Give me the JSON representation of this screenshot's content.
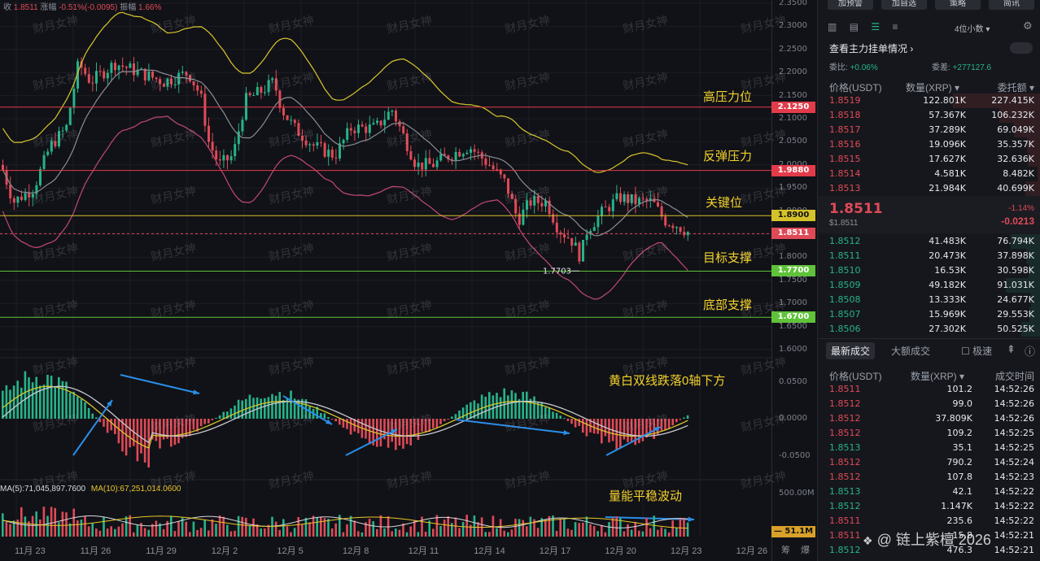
{
  "top_info": {
    "close_label": "收",
    "close_val": "1.8511",
    "chg_label": "涨幅",
    "chg_val": "-0.51%(-0.0095)",
    "amp_label": "振幅",
    "amp_val": "1.66%"
  },
  "price_ticks": [
    "2.3500",
    "2.3000",
    "2.2500",
    "2.2000",
    "2.1500",
    "2.1000",
    "2.0500",
    "2.0000",
    "1.9500",
    "1.9000",
    "1.8500",
    "1.8000",
    "1.7500",
    "1.7000",
    "1.6500",
    "1.6000"
  ],
  "macd_ticks": [
    "0.0500",
    "0.0000",
    "-0.0500"
  ],
  "vol_ticks": [
    "500.00M"
  ],
  "levels": [
    {
      "label": "高压力位",
      "price": "2.1250",
      "color": "#e33b4a"
    },
    {
      "label": "反弹压力",
      "price": "1.9880",
      "color": "#e33b4a"
    },
    {
      "label": "关键位",
      "price": "1.8900",
      "color": "#d4c22a"
    },
    {
      "label": "目标支撑",
      "price": "1.7700",
      "color": "#5fc23a"
    },
    {
      "label": "底部支撑",
      "price": "1.6700",
      "color": "#5fc23a"
    }
  ],
  "current_price": "1.8511",
  "low_marker": "1.7703",
  "annotations": {
    "macd": "黄白双线跌落0轴下方",
    "volume": "量能平稳波动"
  },
  "volume_info": {
    "ma5": "MA(5):71,045,897.7600",
    "ma10": "MA(10):67,251,014.0600",
    "current": "51.1M"
  },
  "x_ticks": [
    "11月 23",
    "11月 26",
    "11月 29",
    "12月 2",
    "12月 5",
    "12月 8",
    "12月 11",
    "12月 14",
    "12月 17",
    "12月 20",
    "12月 23",
    "12月 26"
  ],
  "axis_icons": {
    "a": "筹",
    "b": "爆"
  },
  "watermark": "财月女神",
  "source_watermark": "链上紫檀 2026",
  "right_panel": {
    "top_buttons": [
      "加预警",
      "加自选",
      "策略",
      "简讯"
    ],
    "depth_selector": "4位小数",
    "view_main": "查看主力挂单情况",
    "ratio_label": "委比:",
    "ratio_val": "+0.06%",
    "diff_label": "委差:",
    "diff_val": "+277127.6",
    "ob_headers": [
      "价格(USDT)",
      "数量(XRP)",
      "委托额"
    ],
    "asks": [
      {
        "p": "1.8519",
        "q": "122.801K",
        "t": "227.415K"
      },
      {
        "p": "1.8518",
        "q": "57.367K",
        "t": "106.232K"
      },
      {
        "p": "1.8517",
        "q": "37.289K",
        "t": "69.049K"
      },
      {
        "p": "1.8516",
        "q": "19.096K",
        "t": "35.357K"
      },
      {
        "p": "1.8515",
        "q": "17.627K",
        "t": "32.636K"
      },
      {
        "p": "1.8514",
        "q": "4.581K",
        "t": "8.482K"
      },
      {
        "p": "1.8513",
        "q": "21.984K",
        "t": "40.699K"
      }
    ],
    "mid_price": "1.8511",
    "mid_sub": "$1.8511",
    "mid_pct": "-1.14%",
    "mid_chg": "-0.0213",
    "bids": [
      {
        "p": "1.8512",
        "q": "41.483K",
        "t": "76.794K"
      },
      {
        "p": "1.8511",
        "q": "20.473K",
        "t": "37.898K"
      },
      {
        "p": "1.8510",
        "q": "16.53K",
        "t": "30.598K"
      },
      {
        "p": "1.8509",
        "q": "49.182K",
        "t": "91.031K"
      },
      {
        "p": "1.8508",
        "q": "13.333K",
        "t": "24.677K"
      },
      {
        "p": "1.8507",
        "q": "15.969K",
        "t": "29.553K"
      },
      {
        "p": "1.8506",
        "q": "27.302K",
        "t": "50.525K"
      }
    ],
    "trade_tabs": [
      "最新成交",
      "大额成交"
    ],
    "fast_label": "极速",
    "trade_headers": [
      "价格(USDT)",
      "数量(XRP)",
      "成交时间"
    ],
    "trades": [
      {
        "p": "1.8511",
        "q": "101.2",
        "t": "14:52:26",
        "side": "sell"
      },
      {
        "p": "1.8512",
        "q": "99.0",
        "t": "14:52:26",
        "side": "sell"
      },
      {
        "p": "1.8512",
        "q": "37.809K",
        "t": "14:52:26",
        "side": "sell"
      },
      {
        "p": "1.8512",
        "q": "109.2",
        "t": "14:52:25",
        "side": "sell"
      },
      {
        "p": "1.8513",
        "q": "35.1",
        "t": "14:52:25",
        "side": "buy"
      },
      {
        "p": "1.8512",
        "q": "790.2",
        "t": "14:52:24",
        "side": "sell"
      },
      {
        "p": "1.8512",
        "q": "107.8",
        "t": "14:52:23",
        "side": "sell"
      },
      {
        "p": "1.8513",
        "q": "42.1",
        "t": "14:52:22",
        "side": "buy"
      },
      {
        "p": "1.8512",
        "q": "1.147K",
        "t": "14:52:22",
        "side": "buy"
      },
      {
        "p": "1.8511",
        "q": "235.6",
        "t": "14:52:22",
        "side": "sell"
      },
      {
        "p": "1.8511",
        "q": "15.8",
        "t": "14:52:21",
        "side": "sell"
      },
      {
        "p": "1.8512",
        "q": "476.3",
        "t": "14:52:21",
        "side": "buy"
      }
    ]
  },
  "colors": {
    "up": "#26b38a",
    "down": "#e04a57",
    "boll_upper": "#d8c62c",
    "boll_mid": "#8a8d96",
    "boll_lower": "#c2487a",
    "dif": "#d8c62c",
    "dea": "#c8cad0",
    "arrow": "#2a8ee8"
  }
}
